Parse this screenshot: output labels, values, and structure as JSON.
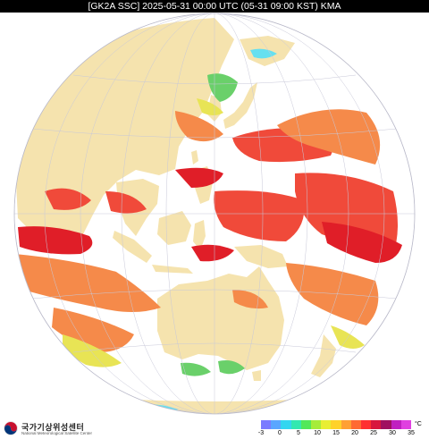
{
  "header": {
    "title": "[GK2A SSC] 2025-05-31 00:00 UTC (05-31 09:00 KST) KMA"
  },
  "footer": {
    "agency_korean": "국가기상위성센터",
    "agency_english": "National Meteorological Satellite Center"
  },
  "legend": {
    "unit": "°C",
    "ticks": [
      "-3",
      "0",
      "5",
      "10",
      "15",
      "20",
      "25",
      "30",
      "35"
    ],
    "colors": [
      "#7b7bff",
      "#5aa6ff",
      "#33d6f0",
      "#33e8b0",
      "#52e85a",
      "#a6ec3a",
      "#e8ee33",
      "#ffd22a",
      "#ffa033",
      "#ff6a33",
      "#ff3030",
      "#d8163e",
      "#a01060",
      "#c020c0",
      "#e040e0"
    ]
  },
  "colors": {
    "land": "#f5e3ae",
    "cloud": "#ffffff",
    "grid": "#c8c8d8",
    "warm_sea": "#f04a3a",
    "hot_sea": "#e01e28",
    "mild_sea": "#f58a4a",
    "cool_sea": "#e8e455",
    "cold_sea": "#6ad06a",
    "coldest_sea": "#66e0f0"
  }
}
